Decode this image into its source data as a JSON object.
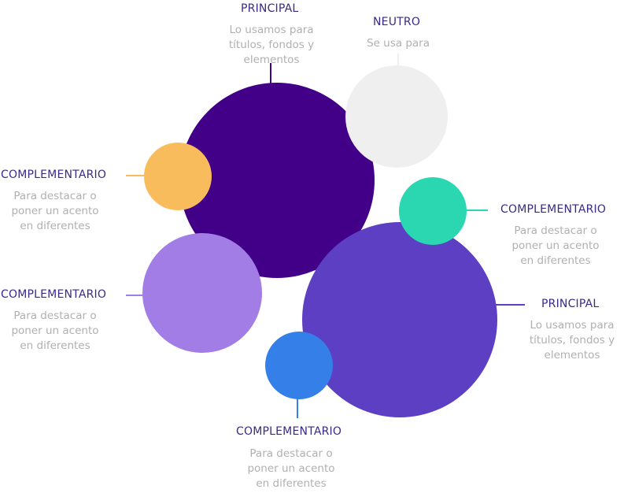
{
  "colors": {
    "principal_dark": "#420089",
    "principal_medium": "#5c3fc3",
    "neutral": "#efefef",
    "complementary_orange": "#f8bc5c",
    "complementary_teal": "#2ad7b1",
    "complementary_lilac": "#a17de5",
    "complementary_blue": "#3580e8",
    "title_text": "#3a2a86",
    "description_text": "#b0b0b0"
  },
  "labels": {
    "principal_top": {
      "title": "PRINCIPAL",
      "description": "Lo usamos para\ntítulos, fondos y\nelementos"
    },
    "neutral": {
      "title": "NEUTRO",
      "description": "Se usa para"
    },
    "complementary_orange": {
      "title": "COMPLEMENTARIO",
      "description": "Para destacar o\nponer un acento\nen  diferentes"
    },
    "complementary_teal": {
      "title": "COMPLEMENTARIO",
      "description": "Para destacar o\nponer un acento\nen  diferentes"
    },
    "complementary_lilac": {
      "title": "COMPLEMENTARIO",
      "description": "Para destacar o\nponer un acento\nen  diferentes"
    },
    "principal_right": {
      "title": "PRINCIPAL",
      "description": "Lo usamos para\ntítulos, fondos y\nelementos"
    },
    "complementary_blue": {
      "title": "COMPLEMENTARIO",
      "description": "Para destacar o\nponer un acento\nen  diferentes"
    }
  }
}
